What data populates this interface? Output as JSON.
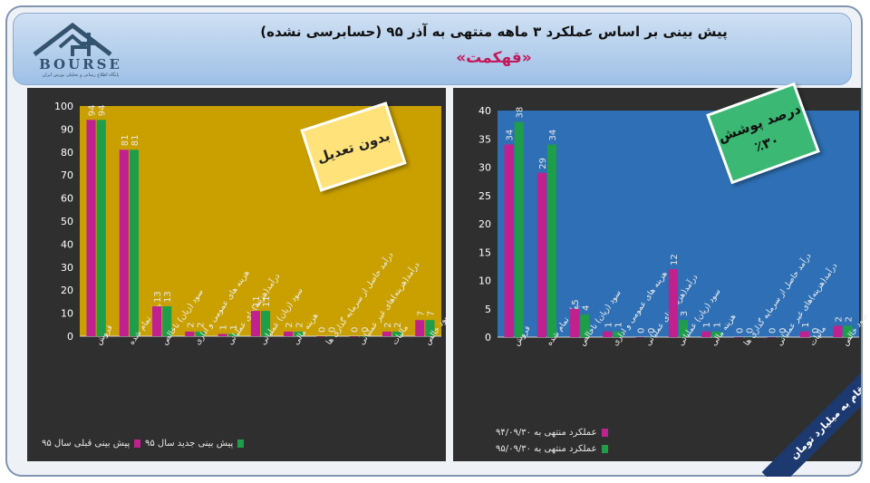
{
  "header": {
    "title": "پیش بینی بر اساس عملکرد ۳ ماهه منتهی به آذر ۹۵ (حسابرسی نشده)",
    "company": "«قهکمت»"
  },
  "logo": {
    "text": "BOURSE",
    "subtitle": "پایگاه اطلاع رسانی و تحلیلی بورس ایران"
  },
  "notes": {
    "left": "بدون تعدیل",
    "right_line1": "درصد پوشش",
    "right_line2": "٪۳۰"
  },
  "banner": "ارقام به میلیارد تومان",
  "colors": {
    "magenta": "#c0218f",
    "green": "#1f9e4a",
    "left_plot_bg": "#c9a000",
    "right_plot_bg": "#2e6fb5"
  },
  "chart_data": [
    {
      "type": "bar",
      "categories": [
        "فروش",
        "بهای تمام شده",
        "سود (زیان) ناخالص",
        "هزینه های عمومی و اداری",
        "درآمد(هزینه)های عملیاتی",
        "سود (زیان) عملیاتی",
        "هزینه مالی",
        "درآمد حاصل از سرمایه گذاری ها",
        "درآمد(هزینه)های غیر عملیاتی",
        "مالیات",
        "سود خالص"
      ],
      "series": [
        {
          "name": "پیش بینی قبلی سال ۹۵",
          "values": [
            94,
            81,
            13,
            2,
            1,
            11,
            2,
            0,
            0,
            2,
            7
          ],
          "labels": [
            "94",
            "81",
            "13",
            "2",
            "1",
            "11",
            "2",
            "0",
            "0",
            "2",
            "7"
          ]
        },
        {
          "name": "پیش بینی جدید سال ۹۵",
          "values": [
            94,
            81,
            13,
            2,
            1,
            11,
            2,
            0,
            0,
            2,
            7
          ],
          "labels": [
            "94",
            "81",
            "13",
            "2",
            "1",
            "11",
            "2",
            "0",
            "0",
            "2",
            "7"
          ]
        }
      ],
      "ylim": [
        0,
        100
      ],
      "yticks": [
        "0",
        "10",
        "20",
        "30",
        "40",
        "50",
        "60",
        "70",
        "80",
        "90",
        "100"
      ],
      "grid": false,
      "legend": "bottom"
    },
    {
      "type": "bar",
      "categories": [
        "فروش",
        "بهای تمام شده",
        "سود (زیان) ناخالص",
        "هزینه های عمومی و اداری",
        "درآمد(هزینه)های عملیاتی",
        "سود (زیان) عملیاتی",
        "هزینه مالی",
        "درآمد حاصل از سرمایه گذاری ها",
        "درآمد(هزینه)های غیر عملیاتی",
        "مالیات",
        "سود خالص"
      ],
      "series": [
        {
          "name": "عملکرد منتهی به ۹۴/۰۹/۳۰",
          "values": [
            34,
            29,
            5,
            1,
            0,
            12,
            1,
            0,
            0,
            1,
            2
          ],
          "labels": [
            "34",
            "29",
            "5",
            "1",
            "0",
            "12",
            "1",
            "0",
            "0",
            "1",
            "2"
          ]
        },
        {
          "name": "عملکرد منتهی به ۹۵/۰۹/۳۰",
          "values": [
            38,
            34,
            4,
            1,
            0,
            3,
            1,
            0,
            0,
            0,
            2
          ],
          "labels": [
            "38",
            "34",
            "4",
            "1",
            "0",
            "3",
            "1",
            "0",
            "0",
            "0",
            "2"
          ]
        }
      ],
      "ylim": [
        0,
        40
      ],
      "yticks": [
        "0",
        "5",
        "10",
        "15",
        "20",
        "25",
        "30",
        "35",
        "40"
      ],
      "grid": false,
      "legend": "bottom"
    }
  ]
}
